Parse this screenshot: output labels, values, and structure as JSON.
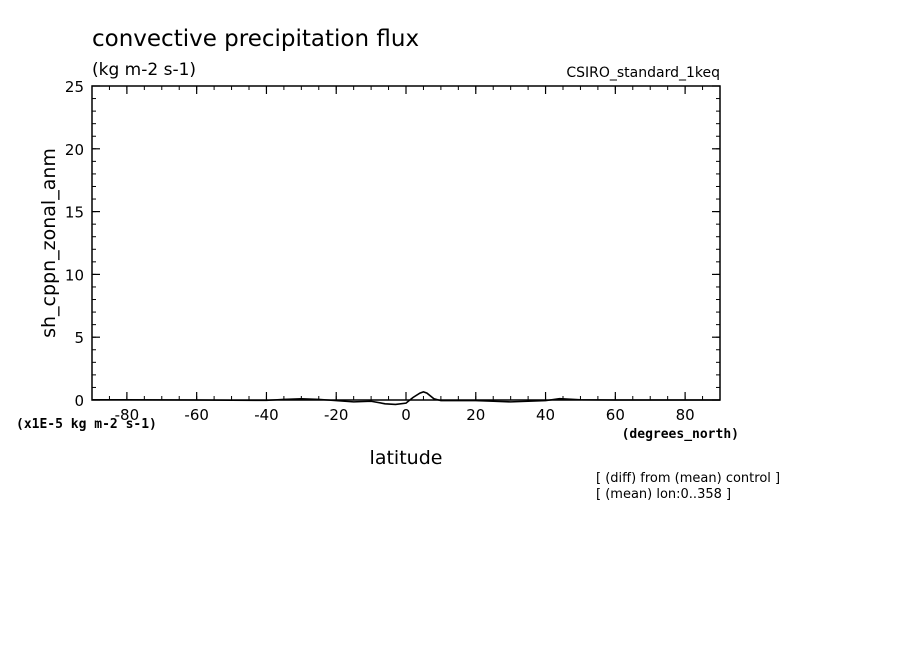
{
  "chart_data": {
    "type": "line",
    "title": "convective precipitation flux",
    "units": "(kg m-2 s-1)",
    "dataset": "CSIRO_standard_1keq",
    "xlabel": "latitude",
    "xunits": "(degrees_north)",
    "ylabel": "sh_cppn_zonal_anm",
    "yscale_note": "(x1E-5 kg m-2 s-1)",
    "xlim": [
      -90,
      90
    ],
    "ylim": [
      0,
      25
    ],
    "x_ticks": [
      -80,
      -60,
      -40,
      -20,
      0,
      20,
      40,
      60,
      80
    ],
    "x_tick_labels": [
      "-80",
      "-60",
      "-40",
      "-20",
      "0",
      "20",
      "40",
      "60",
      "80"
    ],
    "y_ticks": [
      0,
      5,
      10,
      15,
      20,
      25
    ],
    "y_tick_labels": [
      "0",
      "5",
      "10",
      "15",
      "20",
      "25"
    ],
    "notes": [
      "[ (diff) from (mean) control ]",
      "[ (mean) lon:0..358 ]"
    ],
    "grid": false,
    "series": [
      {
        "x": [
          -90,
          -80,
          -70,
          -60,
          -50,
          -40,
          -35,
          -30,
          -25,
          -20,
          -15,
          -10,
          -6,
          -3,
          0,
          2,
          4,
          5,
          6,
          8,
          10,
          15,
          20,
          25,
          30,
          35,
          40,
          44,
          50,
          60,
          70,
          80,
          90
        ],
        "y": [
          0.02,
          0.02,
          0.01,
          0.0,
          -0.02,
          -0.03,
          0.05,
          0.1,
          0.05,
          -0.05,
          -0.15,
          -0.1,
          -0.3,
          -0.35,
          -0.25,
          0.2,
          0.55,
          0.65,
          0.55,
          0.1,
          -0.05,
          -0.05,
          -0.05,
          -0.1,
          -0.15,
          -0.1,
          -0.05,
          0.1,
          0.02,
          0.0,
          0.0,
          0.0,
          0.0
        ],
        "color": "#000000"
      }
    ]
  }
}
